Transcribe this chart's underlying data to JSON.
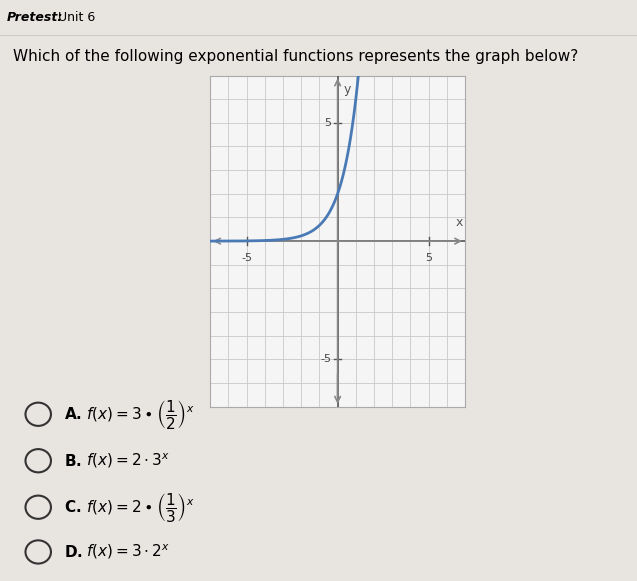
{
  "title_top": "Pretest: Unit 6",
  "title_bold": "Pretest:",
  "title_normal": " Unit 6",
  "question": "Which of the following exponential functions represents the graph below?",
  "graph_xlim": [
    -7,
    7
  ],
  "graph_ylim": [
    -7,
    7
  ],
  "curve_color": "#4a7ab5",
  "grid_color": "#c8c8c8",
  "axis_color": "#555555",
  "arrow_color": "#888888",
  "background_color": "#e8e4e0",
  "panel_color": "#ffffff",
  "graph_border_color": "#aaaaaa",
  "choice_A": "f(x) = 3 \\bullet \\left(\\frac{1}{2}\\right)^x",
  "choice_B": "f(x) = 2 \\cdot 3^x",
  "choice_C": "f(x) = 2 \\bullet \\left(\\frac{1}{3}\\right)^x",
  "choice_D": "f(x) = 3 \\cdot 2^x",
  "choice_label_A": "A.",
  "choice_label_B": "B.",
  "choice_label_C": "C.",
  "choice_label_D": "D."
}
